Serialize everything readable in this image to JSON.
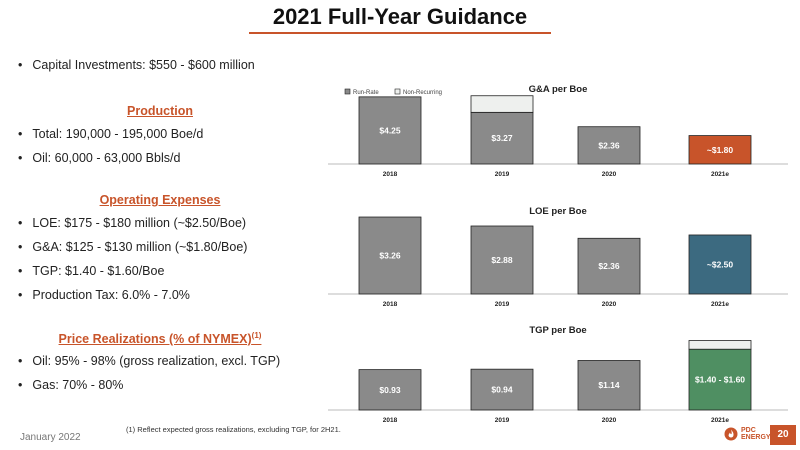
{
  "title": "2021 Full-Year Guidance",
  "capital": "Capital Investments: $550 - $600 million",
  "production": {
    "heading": "Production",
    "items": [
      "Total: 190,000 - 195,000 Boe/d",
      "Oil: 60,000 - 63,000 Bbls/d"
    ]
  },
  "opex": {
    "heading": "Operating Expenses",
    "items": [
      "LOE: $175 - $180 million (~$2.50/Boe)",
      "G&A: $125 - $130 million (~$1.80/Boe)",
      "TGP: $1.40 - $1.60/Boe",
      "Production Tax: 6.0% - 7.0%"
    ]
  },
  "pricing": {
    "heading": "Price Realizations (% of NYMEX)",
    "footnote_ref": "(1)",
    "items": [
      "Oil: 95% - 98% (gross realization, excl. TGP)",
      "Gas: 70% - 80%"
    ]
  },
  "footnote": "(1) Reflect expected gross realizations, excluding TGP, for 2H21.",
  "date": "January 2022",
  "logo": {
    "line1": "PDC",
    "line2": "ENERGY"
  },
  "page_number": "20",
  "colors": {
    "accent": "#c8542a",
    "bar_gray": "#8a8a8a",
    "ga_2021": "#c8542a",
    "loe_2021": "#3c6a80",
    "tgp_2021": "#4f8f62",
    "nonrecurring": "#eef0ee"
  },
  "chart_data": [
    {
      "type": "bar",
      "title": "G&A per Boe",
      "legend": [
        "Run-Rate",
        "Non-Recurring"
      ],
      "legend_position": "top-left",
      "categories": [
        "2018",
        "2019",
        "2020",
        "2021e"
      ],
      "series": [
        {
          "name": "Run-Rate",
          "values": [
            4.25,
            3.27,
            2.36,
            1.8
          ]
        },
        {
          "name": "Non-Recurring",
          "values": [
            0,
            1.05,
            0,
            0
          ]
        }
      ],
      "labels": [
        "$4.25",
        "$3.27",
        "$2.36",
        "~$1.80"
      ],
      "ylim": [
        0,
        5
      ]
    },
    {
      "type": "bar",
      "title": "LOE per Boe",
      "categories": [
        "2018",
        "2019",
        "2020",
        "2021e"
      ],
      "series": [
        {
          "values": [
            3.26,
            2.88,
            2.36,
            2.5
          ]
        }
      ],
      "labels": [
        "$3.26",
        "$2.88",
        "$2.36",
        "~$2.50"
      ],
      "ylim": [
        0,
        3.6
      ]
    },
    {
      "type": "bar",
      "title": "TGP per Boe",
      "categories": [
        "2018",
        "2019",
        "2020",
        "2021e"
      ],
      "series": [
        {
          "values": [
            0.93,
            0.94,
            1.14,
            1.4
          ]
        },
        {
          "values": [
            0,
            0,
            0,
            0.2
          ]
        }
      ],
      "labels": [
        "$0.93",
        "$0.94",
        "$1.14",
        "$1.40 - $1.60"
      ],
      "ylim": [
        0,
        1.75
      ]
    }
  ]
}
